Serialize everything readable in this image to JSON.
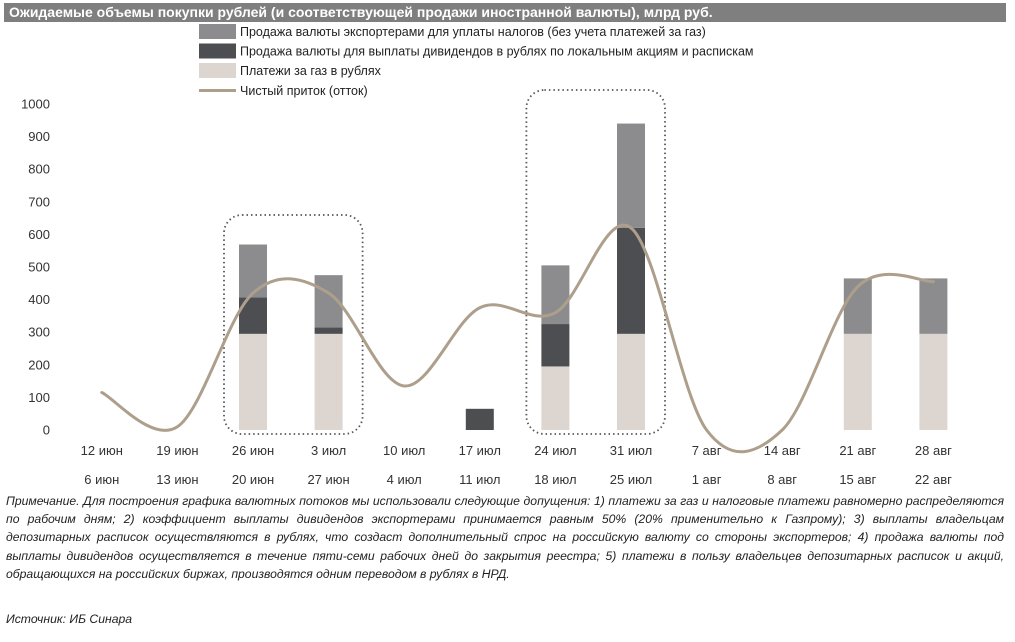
{
  "title": "Ожидаемые объемы покупки рублей (и соответствующей продажи иностранной валюты), млрд руб.",
  "colors": {
    "title_bg": "#7f7f7f",
    "exporters_tax": "#8c8c8e",
    "dividends": "#4c4e52",
    "gas": "#ddd5cf",
    "net_flow": "#ad9f8b",
    "highlight_box": "#555555"
  },
  "chart_data": {
    "type": "bar",
    "stacked": true,
    "ylim": [
      0,
      1000
    ],
    "yticks": [
      "0",
      "100",
      "200",
      "300",
      "400",
      "500",
      "600",
      "700",
      "800",
      "900",
      "1000"
    ],
    "categories": [
      "12 июн",
      "19 июн",
      "26 июн",
      "3 июл",
      "10 июл",
      "17 июл",
      "24 июл",
      "31 июл",
      "7 авг",
      "14 авг",
      "21 авг",
      "28 авг"
    ],
    "categories_secondary": [
      "6 июн",
      "13 июн",
      "20 июн",
      "27 июн",
      "4 июл",
      "11 июл",
      "18 июл",
      "25 июл",
      "1 авг",
      "8 авг",
      "15 авг",
      "22 авг"
    ],
    "series": [
      {
        "key": "gas",
        "name": "Платежи за газ в рублях",
        "values": [
          0,
          0,
          295,
          295,
          0,
          0,
          195,
          295,
          0,
          0,
          295,
          295
        ]
      },
      {
        "key": "dividends",
        "name": "Продажа валюты для выплаты дивидендов в рублях по локальным акциям и распискам",
        "values": [
          0,
          0,
          112,
          20,
          0,
          65,
          130,
          325,
          0,
          0,
          0,
          0
        ]
      },
      {
        "key": "exporters_tax",
        "name": "Продажа валюты экспортерами для уплаты налогов (без учета платежей за газ)",
        "values": [
          0,
          0,
          162,
          160,
          0,
          0,
          180,
          320,
          0,
          0,
          170,
          170
        ]
      }
    ],
    "line": {
      "name": "Чистый приток (отток)",
      "values": [
        115,
        10,
        420,
        420,
        135,
        375,
        360,
        620,
        0,
        0,
        440,
        455
      ]
    },
    "legend_order": [
      "exporters_tax",
      "dividends",
      "gas",
      "line"
    ],
    "highlight_ranges": [
      [
        2,
        3
      ],
      [
        6,
        7
      ]
    ]
  },
  "note": "Примечание. Для построения графика валютных потоков мы использовали следующие допущения: 1) платежи за газ и налоговые платежи равномерно распределяются по рабочим дням; 2) коэффициент выплаты дивидендов экспортерами принимается равным 50% (20% применительно к Газпрому); 3) выплаты владельцам депозитарных расписок осуществляются в рублях, что создаст дополнительный спрос на российскую валюту со стороны экспортеров; 4) продажа валюты под выплаты дивидендов осуществляется в течение пяти-семи рабочих дней до закрытия реестра; 5) платежи в пользу владельцев депозитарных расписок и акций, обращающихся на российских биржах, производятся одним переводом в рублях в НРД.",
  "source": "Источник: ИБ Синара"
}
